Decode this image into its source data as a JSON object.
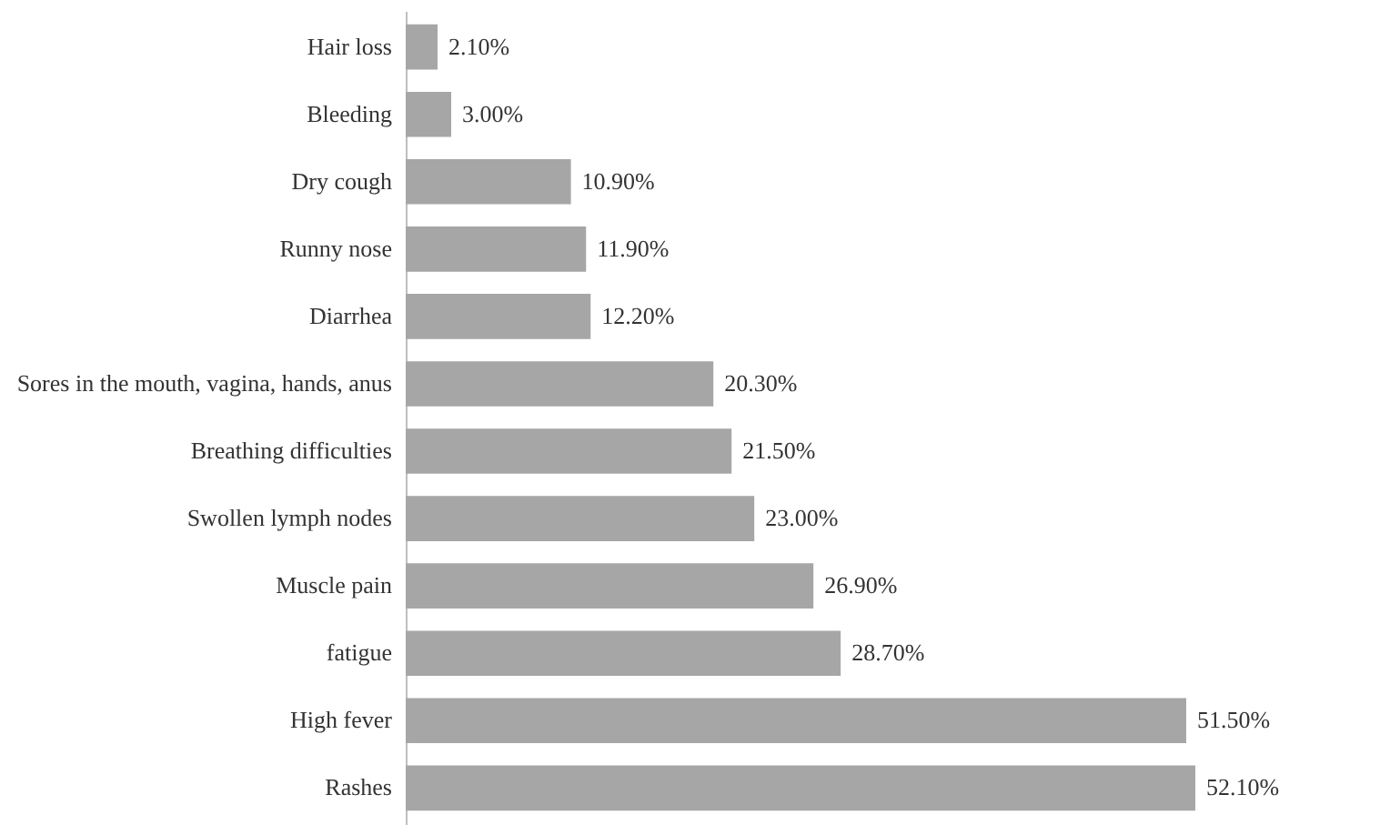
{
  "chart_data": {
    "type": "bar",
    "orientation": "horizontal",
    "color": "#a6a6a6",
    "categories": [
      "Hair loss",
      "Bleeding",
      "Dry cough",
      "Runny nose",
      "Diarrhea",
      "Sores in the mouth, vagina, hands, anus",
      "Breathing difficulties",
      "Swollen lymph nodes",
      "Muscle pain",
      "fatigue",
      "High fever",
      "Rashes"
    ],
    "values": [
      2.1,
      3.0,
      10.9,
      11.9,
      12.2,
      20.3,
      21.5,
      23.0,
      26.9,
      28.7,
      51.5,
      52.1
    ],
    "value_labels": [
      "2.10%",
      "3.00%",
      "10.90%",
      "11.90%",
      "12.20%",
      "20.30%",
      "21.50%",
      "23.00%",
      "26.90%",
      "28.70%",
      "51.50%",
      "52.10%"
    ]
  }
}
